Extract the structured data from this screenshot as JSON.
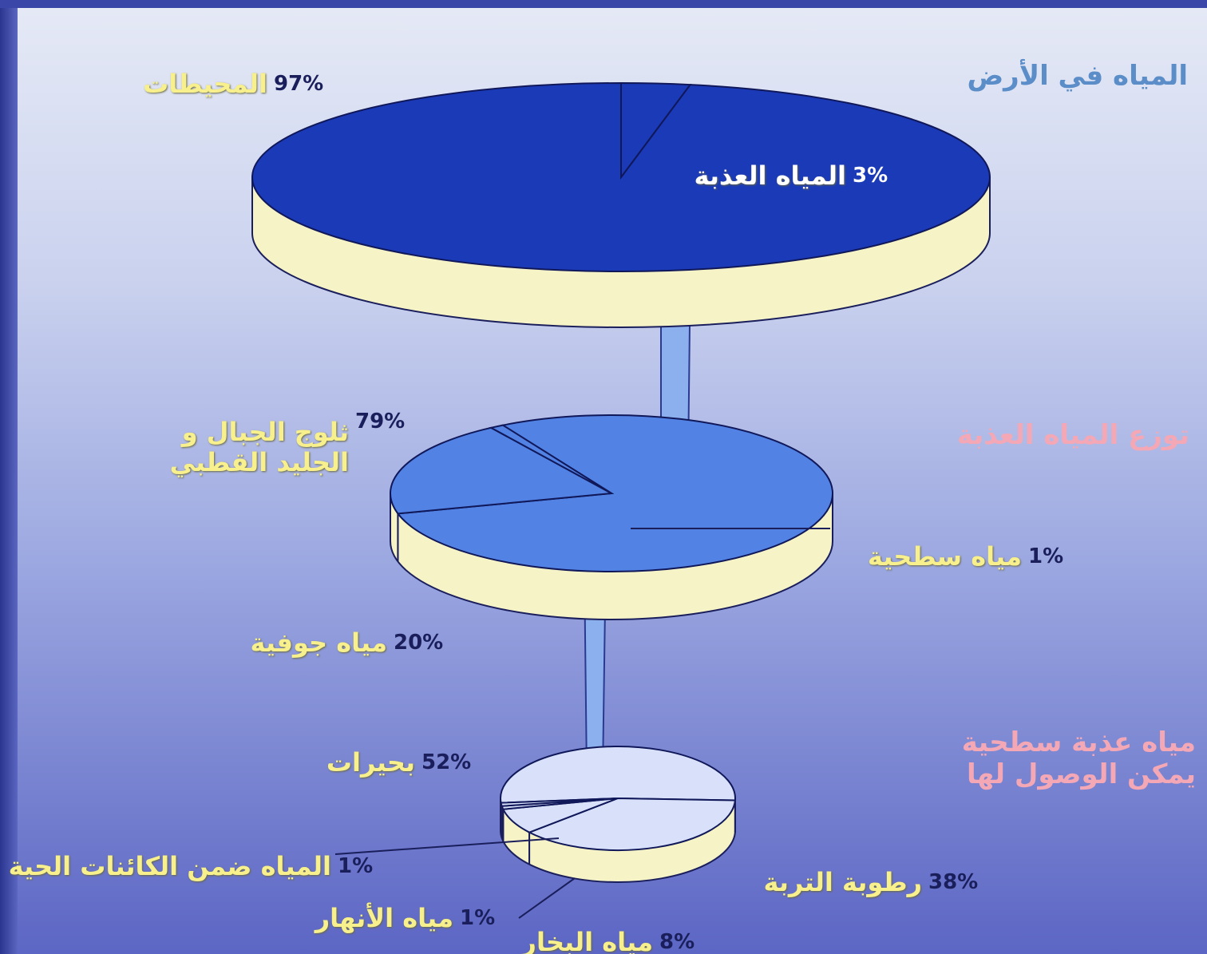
{
  "chart_data": [
    {
      "type": "pie",
      "title": "المياه في الأرض",
      "categories": [
        "المحيطات",
        "المياه العذبة"
      ],
      "values": [
        97,
        3
      ],
      "value_labels": [
        "97%",
        "3%"
      ],
      "color": "#1a3ab8"
    },
    {
      "type": "pie",
      "title": "توزع المياه العذبة",
      "categories": [
        "ثلوج الجبال و الجليد القطبي",
        "مياه جوفية",
        "مياه سطحية"
      ],
      "values": [
        79,
        20,
        1
      ],
      "value_labels": [
        "79%",
        "20%",
        "1%"
      ],
      "color": "#5283e4"
    },
    {
      "type": "pie",
      "title": "مياه عذبة سطحية يمكن الوصول لها",
      "categories": [
        "بحيرات",
        "رطوبة التربة",
        "مياه البخار",
        "المياه ضمن الكائنات الحية",
        "مياه الأنهار"
      ],
      "values": [
        52,
        38,
        8,
        1,
        1
      ],
      "value_labels": [
        "52%",
        "38%",
        "8%",
        "1%",
        "1%"
      ],
      "color": "#d9e1fa"
    }
  ]
}
